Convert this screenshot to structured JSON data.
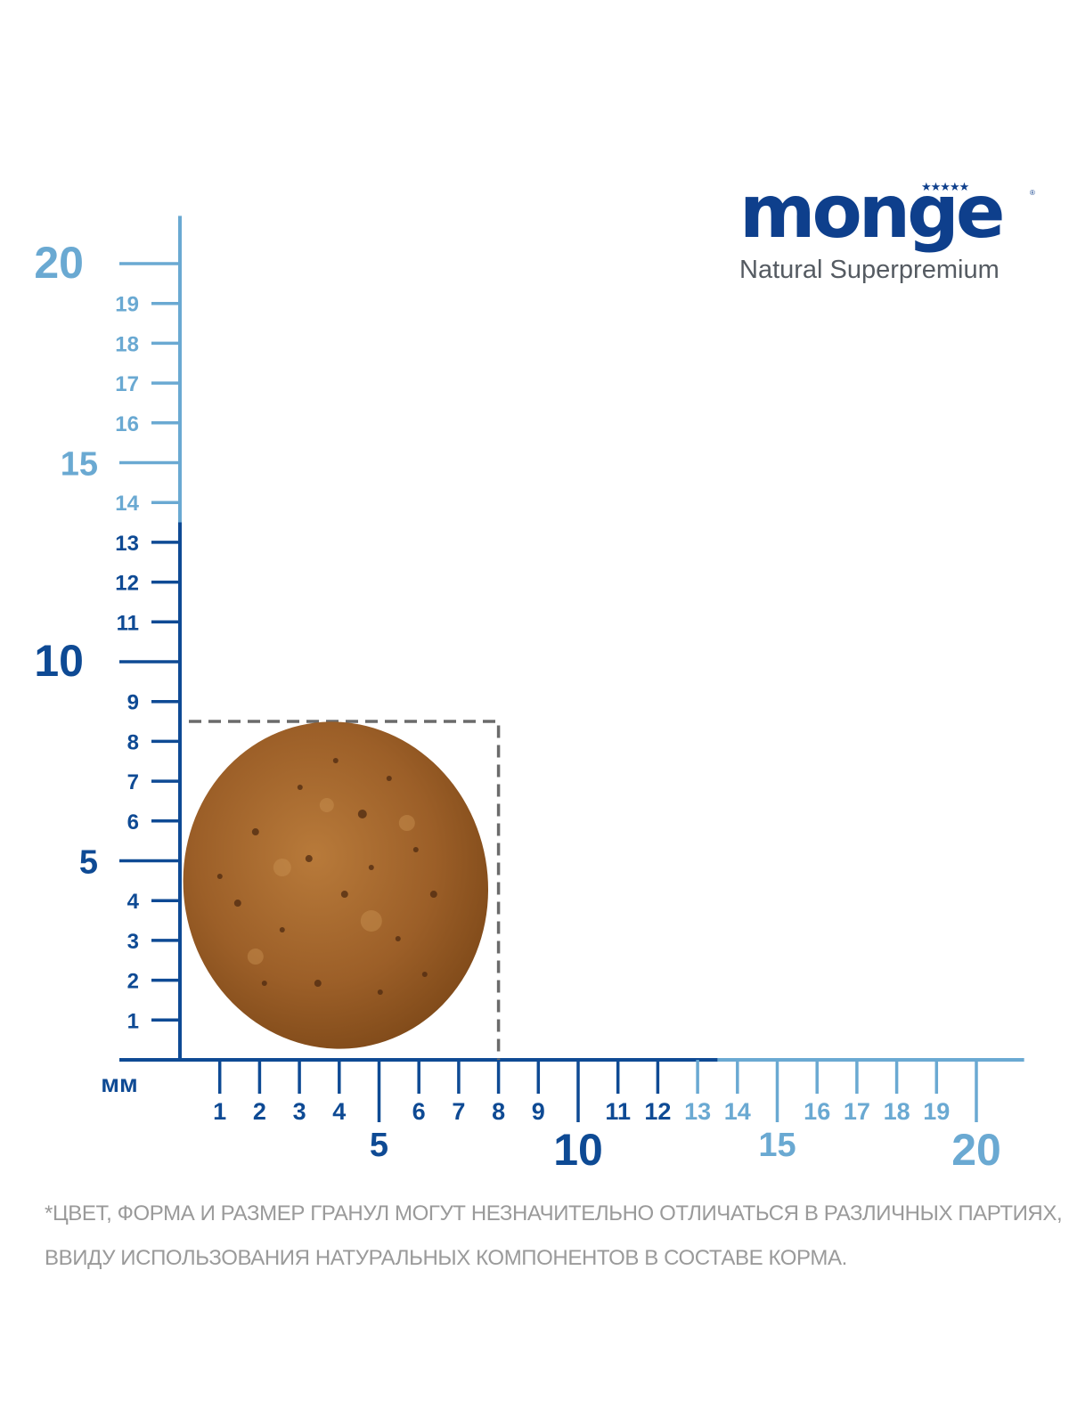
{
  "brand": {
    "name": "MONGE",
    "tagline": "Natural Superpremium",
    "stars": "★★★★★",
    "registered": "®"
  },
  "ruler": {
    "unit": "мм",
    "y_range": [
      0,
      20
    ],
    "x_range": [
      0,
      20
    ],
    "y_labels": [
      {
        "value": 1,
        "text": "1"
      },
      {
        "value": 2,
        "text": "2"
      },
      {
        "value": 3,
        "text": "3"
      },
      {
        "value": 4,
        "text": "4"
      },
      {
        "value": 5,
        "text": "5"
      },
      {
        "value": 6,
        "text": "6"
      },
      {
        "value": 7,
        "text": "7"
      },
      {
        "value": 8,
        "text": "8"
      },
      {
        "value": 9,
        "text": "9"
      },
      {
        "value": 10,
        "text": "10"
      },
      {
        "value": 11,
        "text": "11"
      },
      {
        "value": 12,
        "text": "12"
      },
      {
        "value": 13,
        "text": "13"
      },
      {
        "value": 14,
        "text": "14"
      },
      {
        "value": 15,
        "text": "15"
      },
      {
        "value": 16,
        "text": "16"
      },
      {
        "value": 17,
        "text": "17"
      },
      {
        "value": 18,
        "text": "18"
      },
      {
        "value": 19,
        "text": "19"
      },
      {
        "value": 20,
        "text": "20"
      }
    ],
    "x_labels": [
      {
        "value": 1,
        "text": "1"
      },
      {
        "value": 2,
        "text": "2"
      },
      {
        "value": 3,
        "text": "3"
      },
      {
        "value": 4,
        "text": "4"
      },
      {
        "value": 5,
        "text": "5"
      },
      {
        "value": 6,
        "text": "6"
      },
      {
        "value": 7,
        "text": "7"
      },
      {
        "value": 8,
        "text": "8"
      },
      {
        "value": 9,
        "text": "9"
      },
      {
        "value": 10,
        "text": "10"
      },
      {
        "value": 11,
        "text": "11"
      },
      {
        "value": 12,
        "text": "12"
      },
      {
        "value": 13,
        "text": "13"
      },
      {
        "value": 14,
        "text": "14"
      },
      {
        "value": 15,
        "text": "15"
      },
      {
        "value": 16,
        "text": "16"
      },
      {
        "value": 17,
        "text": "17"
      },
      {
        "value": 18,
        "text": "18"
      },
      {
        "value": 19,
        "text": "19"
      },
      {
        "value": 20,
        "text": "20"
      }
    ],
    "dark_color": "#0e4a94",
    "light_color": "#6aa9d2",
    "dark_extent_mm": 13,
    "kibble_width_mm": 8,
    "kibble_height_mm": 8.5,
    "kibble_color": "#a0642c",
    "box_color": "#6b6b6b"
  },
  "disclaimer": {
    "line1": "*ЦВЕТ, ФОРМА И РАЗМЕР ГРАНУЛ МОГУТ НЕЗНАЧИТЕЛЬНО ОТЛИЧАТЬСЯ В РАЗЛИЧНЫХ ПАРТИЯХ,",
    "line2": "ВВИДУ ИСПОЛЬЗОВАНИЯ НАТУРАЛЬНЫХ КОМПОНЕНТОВ В СОСТАВЕ КОРМА."
  }
}
